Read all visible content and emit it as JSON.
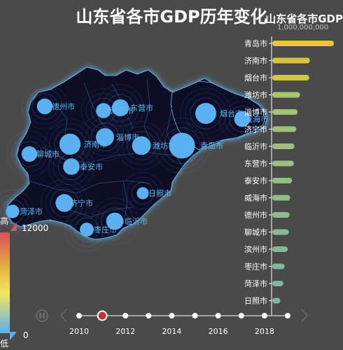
{
  "chart_data": [
    {
      "type": "map",
      "title": "山东省各市GDP历年变化",
      "region": "山东省",
      "visual_map": {
        "min": 0,
        "max": 12000,
        "high_label": "高",
        "low_label": "低",
        "colors": [
          "#5ab1ef",
          "#f5e663",
          "#e3b33f",
          "#d94e5d"
        ]
      },
      "cities": [
        {
          "name": "青岛市",
          "value": 10000
        },
        {
          "name": "济南市",
          "value": 6100
        },
        {
          "name": "烟台市",
          "value": 6000
        },
        {
          "name": "潍坊市",
          "value": 4500
        },
        {
          "name": "淄博市",
          "value": 4100
        },
        {
          "name": "济宁市",
          "value": 3900
        },
        {
          "name": "临沂市",
          "value": 3600
        },
        {
          "name": "东营市",
          "value": 3500
        },
        {
          "name": "泰安市",
          "value": 3200
        },
        {
          "name": "威海市",
          "value": 2900
        },
        {
          "name": "德州市",
          "value": 2800
        },
        {
          "name": "聊城市",
          "value": 2700
        },
        {
          "name": "滨州市",
          "value": 2500
        },
        {
          "name": "枣庄市",
          "value": 2000
        },
        {
          "name": "菏泽市",
          "value": 1800
        },
        {
          "name": "日照市",
          "value": 1300
        }
      ]
    },
    {
      "type": "bar",
      "title": "山东省各市GDP",
      "orientation": "horizontal",
      "tick_text": "1,000,000,000",
      "xlim": [
        0,
        10000
      ],
      "categories": [
        "青岛市",
        "济南市",
        "烟台市",
        "潍坊市",
        "淄博市",
        "济宁市",
        "临沂市",
        "东营市",
        "泰安市",
        "威海市",
        "德州市",
        "聊城市",
        "滨州市",
        "枣庄市",
        "菏泽市",
        "日照市"
      ],
      "values": [
        10000,
        6100,
        6000,
        4500,
        4100,
        3900,
        3600,
        3500,
        3200,
        2900,
        2800,
        2700,
        2500,
        2000,
        1800,
        1300
      ]
    }
  ],
  "timeline": {
    "years": [
      2010,
      2011,
      2012,
      2013,
      2014,
      2015,
      2016,
      2017,
      2018,
      2019
    ],
    "labeled_years": [
      "2010",
      "2012",
      "2014",
      "2016",
      "2018"
    ],
    "current": 2011
  },
  "colors": {
    "background": "#4a4a4a",
    "bubble": "#5ab1ef",
    "map_fill": "#0d1028",
    "map_glow": "#5fb8f0",
    "timeline_active": "#c23531"
  }
}
